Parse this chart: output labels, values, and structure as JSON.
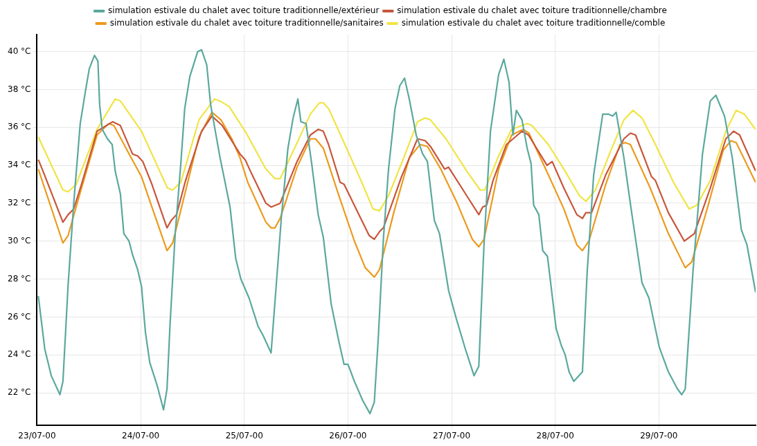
{
  "chart_data": {
    "type": "line",
    "legend": "top",
    "grid": true,
    "marker": "none",
    "line_style": "solid",
    "xlim": [
      "2000-07-23",
      "2000-07-29T22:24"
    ],
    "ylim": [
      20.3,
      40.9
    ],
    "xticks": [
      {
        "value": "2000-07-23",
        "label": "23/07-00"
      },
      {
        "value": "2000-07-24",
        "label": "24/07-00"
      },
      {
        "value": "2000-07-25",
        "label": "25/07-00"
      },
      {
        "value": "2000-07-26",
        "label": "26/07-00"
      },
      {
        "value": "2000-07-27",
        "label": "27/07-00"
      },
      {
        "value": "2000-07-28",
        "label": "28/07-00"
      },
      {
        "value": "2000-07-29",
        "label": "29/07-00"
      }
    ],
    "yticks": [
      {
        "value": 22,
        "label": "22 °C"
      },
      {
        "value": 24,
        "label": "24 °C"
      },
      {
        "value": 26,
        "label": "26 °C"
      },
      {
        "value": 28,
        "label": "28 °C"
      },
      {
        "value": 30,
        "label": "30 °C"
      },
      {
        "value": 32,
        "label": "32 °C"
      },
      {
        "value": 34,
        "label": "34 °C"
      },
      {
        "value": 36,
        "label": "36 °C"
      },
      {
        "value": 38,
        "label": "38 °C"
      },
      {
        "value": 40,
        "label": "40 °C"
      }
    ],
    "series": [
      {
        "name": "simulation estivale du chalet avec toiture traditionnelle/extérieur",
        "color": "#5aa89e",
        "x": [
          "2000-07-23T00:18",
          "2000-07-23T01:48",
          "2000-07-23T03:18",
          "2000-07-23T05:18",
          "2000-07-23T06:00",
          "2000-07-23T07:12",
          "2000-07-23T08:30",
          "2000-07-23T10:00",
          "2000-07-23T11:12",
          "2000-07-23T12:06",
          "2000-07-23T13:18",
          "2000-07-23T14:06",
          "2000-07-23T14:30",
          "2000-07-23T15:06",
          "2000-07-23T16:18",
          "2000-07-23T17:24",
          "2000-07-23T18:06",
          "2000-07-23T19:18",
          "2000-07-23T20:06",
          "2000-07-23T21:18",
          "2000-07-23T22:06",
          "2000-07-23T23:18",
          "2000-07-24T00:12",
          "2000-07-24T01:06",
          "2000-07-24T02:06",
          "2000-07-24T03:48",
          "2000-07-24T05:18",
          "2000-07-24T06:06",
          "2000-07-24T06:48",
          "2000-07-24T08:00",
          "2000-07-24T09:18",
          "2000-07-24T10:12",
          "2000-07-24T11:24",
          "2000-07-24T13:12",
          "2000-07-24T14:06",
          "2000-07-24T15:18",
          "2000-07-24T16:12",
          "2000-07-24T18:18",
          "2000-07-24T20:42",
          "2000-07-24T22:00",
          "2000-07-24T23:12",
          "2000-07-25T01:06",
          "2000-07-25T03:12",
          "2000-07-25T04:24",
          "2000-07-25T06:12",
          "2000-07-25T07:24",
          "2000-07-25T08:36",
          "2000-07-25T10:06",
          "2000-07-25T11:18",
          "2000-07-25T12:24",
          "2000-07-25T13:06",
          "2000-07-25T14:18",
          "2000-07-25T15:36",
          "2000-07-25T17:06",
          "2000-07-25T18:18",
          "2000-07-25T20:06",
          "2000-07-25T21:54",
          "2000-07-25T23:06",
          "2000-07-26T00:00",
          "2000-07-26T01:30",
          "2000-07-26T03:24",
          "2000-07-26T05:06",
          "2000-07-26T06:06",
          "2000-07-26T07:00",
          "2000-07-26T08:12",
          "2000-07-26T09:24",
          "2000-07-26T10:54",
          "2000-07-26T12:00",
          "2000-07-26T13:06",
          "2000-07-26T14:12",
          "2000-07-26T15:48",
          "2000-07-26T17:18",
          "2000-07-26T18:24",
          "2000-07-26T20:00",
          "2000-07-26T21:12",
          "2000-07-26T23:18",
          "2000-07-27T01:06",
          "2000-07-27T03:12",
          "2000-07-27T05:12",
          "2000-07-27T06:18",
          "2000-07-27T07:30",
          "2000-07-27T09:00",
          "2000-07-27T10:54",
          "2000-07-27T12:06",
          "2000-07-27T13:18",
          "2000-07-27T14:12",
          "2000-07-27T15:00",
          "2000-07-27T16:18",
          "2000-07-27T17:30",
          "2000-07-27T18:24",
          "2000-07-27T19:00",
          "2000-07-27T20:12",
          "2000-07-27T21:06",
          "2000-07-27T22:12",
          "2000-07-28T00:12",
          "2000-07-28T01:24",
          "2000-07-28T02:18",
          "2000-07-28T03:12",
          "2000-07-28T04:18",
          "2000-07-28T06:18",
          "2000-07-28T07:24",
          "2000-07-28T08:54",
          "2000-07-28T11:00",
          "2000-07-28T12:18",
          "2000-07-28T13:18",
          "2000-07-28T14:06",
          "2000-07-28T15:54",
          "2000-07-28T17:42",
          "2000-07-28T20:06",
          "2000-07-28T21:42",
          "2000-07-29T00:06",
          "2000-07-29T02:12",
          "2000-07-29T04:18",
          "2000-07-29T05:18",
          "2000-07-29T06:06",
          "2000-07-29T07:54",
          "2000-07-29T10:06",
          "2000-07-29T11:54",
          "2000-07-29T13:12",
          "2000-07-29T15:12",
          "2000-07-29T17:00",
          "2000-07-29T19:06",
          "2000-07-29T20:24",
          "2000-07-29T22:24"
        ],
        "values": [
          27.1,
          24.3,
          22.9,
          21.9,
          22.6,
          27.7,
          32.0,
          36.2,
          37.9,
          39.1,
          39.8,
          39.5,
          37.2,
          35.9,
          35.4,
          35.1,
          33.7,
          32.5,
          30.4,
          30.0,
          29.3,
          28.5,
          27.6,
          25.2,
          23.6,
          22.4,
          21.1,
          22.2,
          25.6,
          30.4,
          34.1,
          37.0,
          38.7,
          40.0,
          40.1,
          39.3,
          37.2,
          34.5,
          31.8,
          29.1,
          28.0,
          27.0,
          25.5,
          25.0,
          24.1,
          27.7,
          31.3,
          34.9,
          36.5,
          37.5,
          36.3,
          36.2,
          34.1,
          31.4,
          30.2,
          26.7,
          24.7,
          23.5,
          23.5,
          22.6,
          21.6,
          20.9,
          21.5,
          24.8,
          30.1,
          33.8,
          37.0,
          38.2,
          38.6,
          37.5,
          35.6,
          34.6,
          34.2,
          31.1,
          30.4,
          27.4,
          25.9,
          24.3,
          22.9,
          23.4,
          29.8,
          35.8,
          38.8,
          39.6,
          38.4,
          35.6,
          36.9,
          36.4,
          34.9,
          34.1,
          31.9,
          31.4,
          29.5,
          29.2,
          25.4,
          24.5,
          24.0,
          23.1,
          22.6,
          23.1,
          28.4,
          33.5,
          36.7,
          36.7,
          36.6,
          36.8,
          34.4,
          31.5,
          27.8,
          27.0,
          24.4,
          23.1,
          22.2,
          21.9,
          22.2,
          28.4,
          34.6,
          37.4,
          37.7,
          36.6,
          34.4,
          30.6,
          29.8,
          27.3
        ]
      },
      {
        "name": "simulation estivale du chalet avec toiture traditionnelle/chambre",
        "color": "#c8553a",
        "x": [
          "2000-07-23T00:18",
          "2000-07-23T01:12",
          "2000-07-23T06:00",
          "2000-07-23T07:12",
          "2000-07-23T08:30",
          "2000-07-23T10:18",
          "2000-07-23T13:54",
          "2000-07-23T17:30",
          "2000-07-23T19:18",
          "2000-07-23T22:06",
          "2000-07-23T23:18",
          "2000-07-24T00:30",
          "2000-07-24T02:36",
          "2000-07-24T06:06",
          "2000-07-24T07:06",
          "2000-07-24T08:18",
          "2000-07-24T10:24",
          "2000-07-24T14:06",
          "2000-07-24T16:30",
          "2000-07-24T18:54",
          "2000-07-24T23:00",
          "2000-07-25T00:12",
          "2000-07-25T01:24",
          "2000-07-25T05:00",
          "2000-07-25T06:12",
          "2000-07-25T08:18",
          "2000-07-25T12:12",
          "2000-07-25T15:18",
          "2000-07-25T17:06",
          "2000-07-25T18:18",
          "2000-07-25T19:30",
          "2000-07-25T22:12",
          "2000-07-25T23:06",
          "2000-07-26T04:54",
          "2000-07-26T06:06",
          "2000-07-26T07:18",
          "2000-07-26T08:12",
          "2000-07-26T12:24",
          "2000-07-26T16:06",
          "2000-07-26T17:54",
          "2000-07-26T19:06",
          "2000-07-26T22:24",
          "2000-07-26T23:18",
          "2000-07-27T03:30",
          "2000-07-27T06:18",
          "2000-07-27T07:12",
          "2000-07-27T08:06",
          "2000-07-27T09:36",
          "2000-07-27T12:42",
          "2000-07-27T16:18",
          "2000-07-27T17:48",
          "2000-07-27T22:06",
          "2000-07-27T23:18",
          "2000-07-28T02:00",
          "2000-07-28T05:00",
          "2000-07-28T06:18",
          "2000-07-28T07:06",
          "2000-07-28T08:24",
          "2000-07-28T11:42",
          "2000-07-28T15:54",
          "2000-07-28T17:24",
          "2000-07-28T18:36",
          "2000-07-28T22:18",
          "2000-07-28T23:12",
          "2000-07-29T02:12",
          "2000-07-29T05:54",
          "2000-07-29T08:12",
          "2000-07-29T11:54",
          "2000-07-29T15:30",
          "2000-07-29T17:18",
          "2000-07-29T18:42",
          "2000-07-29T22:24"
        ],
        "values": [
          34.3,
          33.8,
          31.0,
          31.4,
          31.7,
          33.0,
          35.8,
          36.3,
          36.1,
          34.6,
          34.5,
          34.2,
          33.0,
          30.7,
          31.1,
          31.4,
          33.2,
          35.8,
          36.6,
          36.1,
          34.6,
          34.3,
          33.7,
          32.0,
          31.8,
          32.0,
          34.2,
          35.6,
          35.9,
          35.8,
          35.1,
          33.1,
          33.0,
          30.3,
          30.1,
          30.5,
          30.7,
          33.4,
          35.4,
          35.3,
          35.0,
          33.8,
          33.9,
          32.4,
          31.4,
          31.8,
          31.9,
          33.2,
          35.1,
          35.8,
          35.6,
          34.0,
          34.2,
          32.8,
          31.4,
          31.2,
          31.5,
          31.5,
          33.5,
          35.4,
          35.7,
          35.6,
          33.4,
          33.2,
          31.5,
          30.0,
          30.4,
          32.8,
          35.4,
          35.8,
          35.6,
          33.7
        ]
      },
      {
        "name": "simulation estivale du chalet avec toiture traditionnelle/sanitaires",
        "color": "#ec9a1c",
        "x": [
          "2000-07-23T00:18",
          "2000-07-23T06:00",
          "2000-07-23T07:12",
          "2000-07-23T10:18",
          "2000-07-23T13:54",
          "2000-07-23T16:36",
          "2000-07-23T17:48",
          "2000-07-23T21:48",
          "2000-07-24T00:12",
          "2000-07-24T02:36",
          "2000-07-24T06:06",
          "2000-07-24T07:24",
          "2000-07-24T09:48",
          "2000-07-24T13:30",
          "2000-07-24T16:30",
          "2000-07-24T18:36",
          "2000-07-24T21:06",
          "2000-07-24T23:00",
          "2000-07-25T00:48",
          "2000-07-25T05:00",
          "2000-07-25T06:12",
          "2000-07-25T07:06",
          "2000-07-25T08:18",
          "2000-07-25T12:12",
          "2000-07-25T15:18",
          "2000-07-25T16:30",
          "2000-07-25T18:18",
          "2000-07-25T21:54",
          "2000-07-26T01:30",
          "2000-07-26T04:00",
          "2000-07-26T06:06",
          "2000-07-26T07:18",
          "2000-07-26T10:36",
          "2000-07-26T14:12",
          "2000-07-26T16:42",
          "2000-07-26T18:24",
          "2000-07-26T21:30",
          "2000-07-27T01:06",
          "2000-07-27T04:48",
          "2000-07-27T06:18",
          "2000-07-27T07:30",
          "2000-07-27T10:54",
          "2000-07-27T13:54",
          "2000-07-27T16:36",
          "2000-07-27T17:54",
          "2000-07-27T22:24",
          "2000-07-28T02:00",
          "2000-07-28T05:00",
          "2000-07-28T06:18",
          "2000-07-28T07:48",
          "2000-07-28T11:42",
          "2000-07-28T15:00",
          "2000-07-28T16:12",
          "2000-07-28T17:24",
          "2000-07-28T22:00",
          "2000-07-29T02:12",
          "2000-07-29T06:06",
          "2000-07-29T07:36",
          "2000-07-29T11:18",
          "2000-07-29T14:54",
          "2000-07-29T16:42",
          "2000-07-29T17:54",
          "2000-07-29T22:24"
        ],
        "values": [
          33.8,
          29.9,
          30.3,
          32.8,
          35.6,
          36.2,
          36.1,
          34.4,
          33.4,
          31.8,
          29.5,
          29.9,
          32.1,
          35.5,
          36.8,
          36.4,
          35.4,
          34.4,
          33.1,
          31.0,
          30.7,
          30.7,
          31.2,
          33.9,
          35.4,
          35.4,
          34.9,
          32.4,
          30.0,
          28.6,
          28.1,
          28.5,
          31.5,
          34.4,
          35.1,
          35.0,
          33.8,
          32.1,
          30.1,
          29.7,
          30.1,
          33.8,
          35.6,
          35.9,
          35.7,
          33.5,
          31.7,
          29.8,
          29.5,
          30.0,
          33.0,
          35.1,
          35.2,
          35.1,
          32.8,
          30.4,
          28.6,
          28.9,
          31.8,
          34.8,
          35.3,
          35.2,
          33.1
        ]
      },
      {
        "name": "simulation estivale du chalet avec toiture traditionnelle/comble",
        "color": "#f0e443",
        "x": [
          "2000-07-23T00:18",
          "2000-07-23T06:00",
          "2000-07-23T07:12",
          "2000-07-23T09:06",
          "2000-07-23T13:54",
          "2000-07-23T18:06",
          "2000-07-23T19:18",
          "2000-07-24T00:12",
          "2000-07-24T06:12",
          "2000-07-24T07:24",
          "2000-07-24T09:18",
          "2000-07-24T13:30",
          "2000-07-24T17:06",
          "2000-07-24T18:18",
          "2000-07-24T20:30",
          "2000-07-25T00:12",
          "2000-07-25T05:00",
          "2000-07-25T07:06",
          "2000-07-25T08:18",
          "2000-07-25T11:00",
          "2000-07-25T15:18",
          "2000-07-25T17:24",
          "2000-07-25T18:18",
          "2000-07-25T19:30",
          "2000-07-25T23:06",
          "2000-07-26T03:24",
          "2000-07-26T05:48",
          "2000-07-26T07:18",
          "2000-07-26T09:24",
          "2000-07-26T13:06",
          "2000-07-26T16:06",
          "2000-07-26T17:54",
          "2000-07-26T19:06",
          "2000-07-26T22:42",
          "2000-07-27T03:30",
          "2000-07-27T06:36",
          "2000-07-27T07:42",
          "2000-07-27T10:54",
          "2000-07-27T13:54",
          "2000-07-27T17:30",
          "2000-07-27T18:36",
          "2000-07-27T22:24",
          "2000-07-28T02:00",
          "2000-07-28T05:36",
          "2000-07-28T07:06",
          "2000-07-28T09:18",
          "2000-07-28T12:54",
          "2000-07-28T15:54",
          "2000-07-28T18:00",
          "2000-07-28T20:06",
          "2000-07-28T23:12",
          "2000-07-29T03:24",
          "2000-07-29T07:00",
          "2000-07-29T08:48",
          "2000-07-29T11:54",
          "2000-07-29T15:30",
          "2000-07-29T17:54",
          "2000-07-29T19:48",
          "2000-07-29T22:24"
        ],
        "values": [
          35.5,
          32.7,
          32.6,
          33.0,
          35.9,
          37.5,
          37.4,
          35.8,
          32.8,
          32.7,
          33.1,
          36.4,
          37.5,
          37.4,
          37.1,
          35.8,
          33.8,
          33.3,
          33.3,
          34.6,
          36.7,
          37.3,
          37.3,
          37.0,
          35.2,
          33.0,
          31.7,
          31.6,
          32.4,
          34.5,
          36.3,
          36.5,
          36.4,
          35.4,
          33.7,
          32.7,
          32.7,
          34.5,
          35.9,
          36.2,
          36.1,
          35.1,
          33.8,
          32.4,
          32.1,
          32.7,
          34.8,
          36.4,
          36.9,
          36.5,
          35.1,
          33.1,
          31.7,
          31.9,
          33.2,
          35.8,
          36.9,
          36.7,
          35.9
        ]
      }
    ]
  }
}
